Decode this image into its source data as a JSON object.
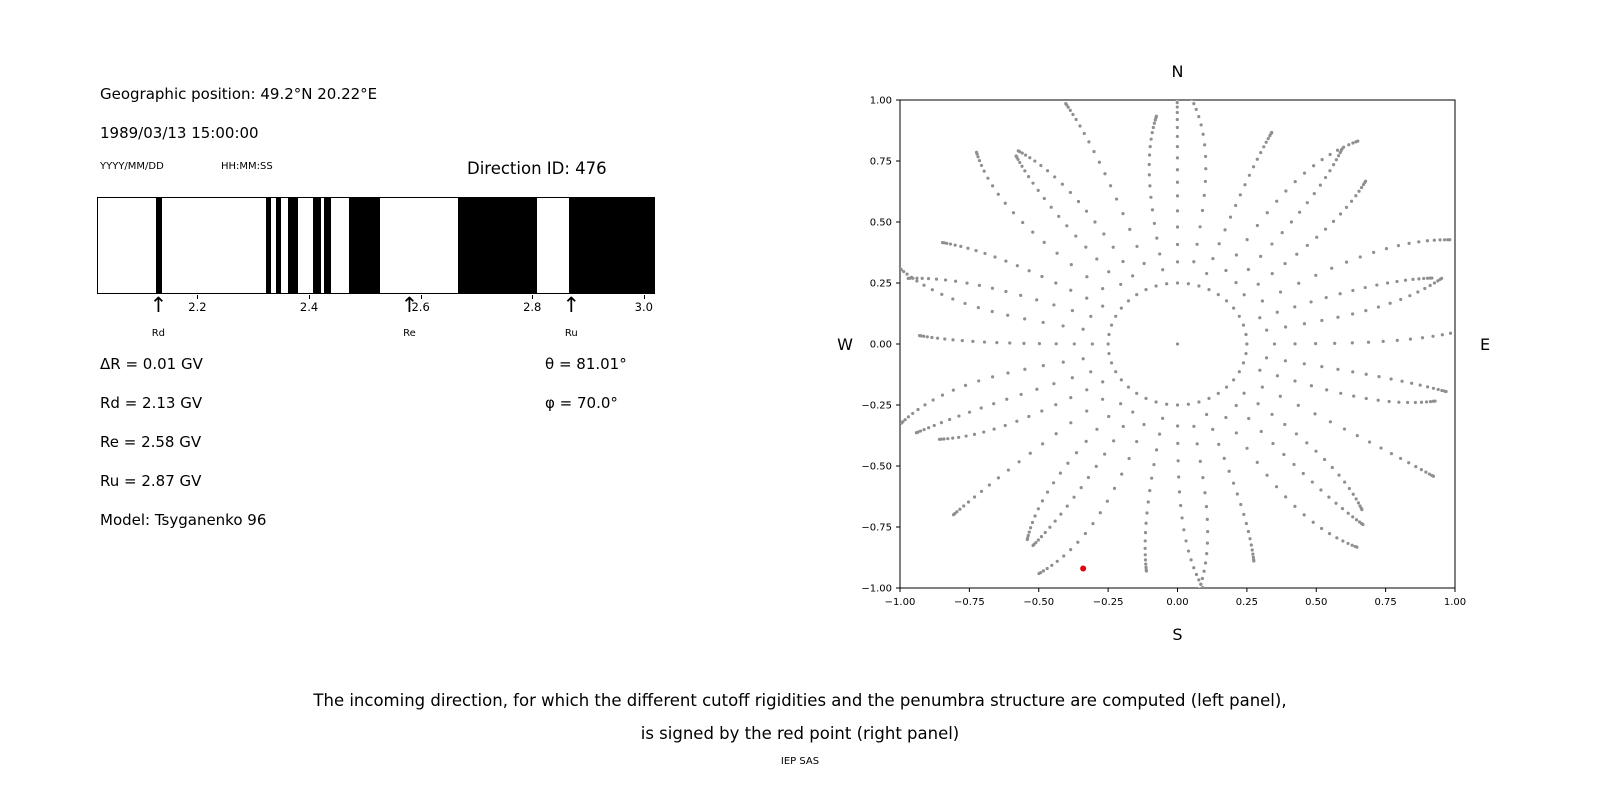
{
  "page": {
    "background": "#ffffff",
    "caption_line1": "The incoming direction, for which the different cutoff rigidities and the penumbra structure are computed (left panel),",
    "caption_line2": "is signed by the red point (right panel)",
    "credit": "IEP SAS"
  },
  "left_panel": {
    "geo_position": "Geographic position: 49.2°N 20.22°E",
    "datetime": "1989/03/13 15:00:00",
    "date_format": "YYYY/MM/DD",
    "time_format": "HH:MM:SS",
    "direction_id": "Direction ID: 476",
    "values": {
      "delta_r": "ΔR = 0.01 GV",
      "rd": "Rd = 2.13 GV",
      "re": "Re = 2.58 GV",
      "ru": "Ru = 2.87 GV",
      "model": "Model: Tsyganenko 96",
      "theta": "θ = 81.01°",
      "phi": "φ = 70.0°"
    }
  },
  "chart_data": [
    {
      "id": "penumbra",
      "type": "barcode",
      "description": "Penumbra structure: black bands mark forbidden rigidity intervals",
      "xlim": [
        2.02,
        3.02
      ],
      "xticks": [
        2.2,
        2.4,
        2.6,
        2.8,
        3.0
      ],
      "band_color": "#000000",
      "bands_gv": [
        [
          2.124,
          2.136
        ],
        [
          2.323,
          2.332
        ],
        [
          2.341,
          2.35
        ],
        [
          2.362,
          2.38
        ],
        [
          2.407,
          2.421
        ],
        [
          2.427,
          2.439
        ],
        [
          2.472,
          2.527
        ],
        [
          2.667,
          2.809
        ],
        [
          2.868,
          3.02
        ]
      ],
      "markers": [
        {
          "label": "Rd",
          "value": 2.13
        },
        {
          "label": "Re",
          "value": 2.58
        },
        {
          "label": "Ru",
          "value": 2.87
        }
      ]
    },
    {
      "id": "directions",
      "type": "scatter",
      "description": "Incoming-direction map: gray dots are scanned directions (radial spokes every 10° plus inner ring and center), red dot is the selected direction ID 476",
      "xlim": [
        -1.0,
        1.0
      ],
      "ylim": [
        -1.0,
        1.0
      ],
      "xticks": [
        -1.0,
        -0.75,
        -0.5,
        -0.25,
        0.0,
        0.25,
        0.5,
        0.75,
        1.0
      ],
      "yticks": [
        -1.0,
        -0.75,
        -0.5,
        -0.25,
        0.0,
        0.25,
        0.5,
        0.75,
        1.0
      ],
      "compass_labels": {
        "top": "N",
        "bottom": "S",
        "left": "W",
        "right": "E"
      },
      "dot_color": "#8f8f8f",
      "grid": false,
      "pattern": {
        "spoke_count": 36,
        "spoke_step_deg": 10,
        "spoke_radii": [
          0.33,
          0.4,
          0.47,
          0.535,
          0.595,
          0.65,
          0.7,
          0.748,
          0.793,
          0.834,
          0.87,
          0.902,
          0.93,
          0.952,
          0.97,
          0.984,
          0.994,
          1.0
        ],
        "spoke_length_variation": 0.07,
        "twist_deg_at_edge": 7,
        "inner_ring_radius": 0.25,
        "inner_ring_count": 40,
        "center_dot": true
      },
      "red_point": {
        "x": -0.34,
        "y": -0.92,
        "color": "#e8000b"
      }
    }
  ]
}
